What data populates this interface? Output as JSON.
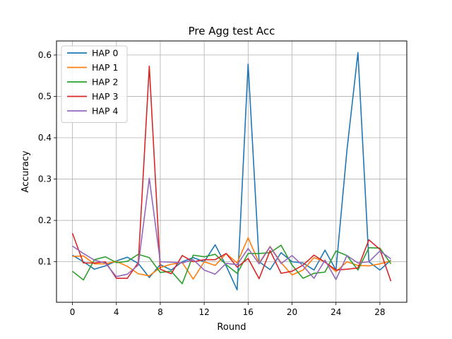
{
  "chart_data": {
    "type": "line",
    "title": "Pre Agg test Acc",
    "xlabel": "Round",
    "ylabel": "Accuracy",
    "xlim": [
      -1.45,
      30.45
    ],
    "ylim": [
      0.002,
      0.634
    ],
    "xticks": [
      0,
      4,
      8,
      12,
      16,
      20,
      24,
      28
    ],
    "yticks": [
      0.1,
      0.2,
      0.3,
      0.4,
      0.5,
      0.6
    ],
    "ytick_labels": [
      "0.1",
      "0.2",
      "0.3",
      "0.4",
      "0.5",
      "0.6"
    ],
    "grid": true,
    "legend_position": "upper-left",
    "x": [
      0,
      1,
      2,
      3,
      4,
      5,
      6,
      7,
      8,
      9,
      10,
      11,
      12,
      13,
      14,
      15,
      16,
      17,
      18,
      19,
      20,
      21,
      22,
      23,
      24,
      25,
      26,
      27,
      28,
      29
    ],
    "series": [
      {
        "name": "HAP 0",
        "color": "#1f77b4",
        "values": [
          0.116,
          0.1,
          0.082,
          0.09,
          0.102,
          0.111,
          0.096,
          0.062,
          0.093,
          0.08,
          0.1,
          0.11,
          0.1,
          0.141,
          0.09,
          0.032,
          0.578,
          0.1,
          0.081,
          0.122,
          0.1,
          0.097,
          0.08,
          0.128,
          0.08,
          0.37,
          0.606,
          0.1,
          0.08,
          0.104
        ]
      },
      {
        "name": "HAP 1",
        "color": "#ff7f0e",
        "values": [
          0.113,
          0.114,
          0.095,
          0.095,
          0.101,
          0.089,
          0.071,
          0.066,
          0.086,
          0.094,
          0.098,
          0.058,
          0.1,
          0.091,
          0.12,
          0.097,
          0.158,
          0.097,
          0.137,
          0.098,
          0.068,
          0.08,
          0.11,
          0.1,
          0.076,
          0.1,
          0.091,
          0.09,
          0.095,
          0.102
        ]
      },
      {
        "name": "HAP 2",
        "color": "#2ca02c",
        "values": [
          0.077,
          0.056,
          0.105,
          0.112,
          0.098,
          0.101,
          0.118,
          0.11,
          0.074,
          0.077,
          0.047,
          0.116,
          0.112,
          0.118,
          0.093,
          0.072,
          0.12,
          0.12,
          0.122,
          0.14,
          0.092,
          0.06,
          0.072,
          0.075,
          0.126,
          0.115,
          0.08,
          0.134,
          0.133,
          0.095
        ]
      },
      {
        "name": "HAP 3",
        "color": "#d62728",
        "values": [
          0.169,
          0.097,
          0.097,
          0.1,
          0.06,
          0.06,
          0.098,
          0.573,
          0.082,
          0.071,
          0.115,
          0.1,
          0.105,
          0.105,
          0.12,
          0.087,
          0.108,
          0.059,
          0.127,
          0.072,
          0.077,
          0.092,
          0.116,
          0.099,
          0.08,
          0.082,
          0.085,
          0.153,
          0.13,
          0.053
        ]
      },
      {
        "name": "HAP 4",
        "color": "#9467bd",
        "values": [
          0.138,
          0.12,
          0.104,
          0.097,
          0.064,
          0.07,
          0.092,
          0.302,
          0.1,
          0.099,
          0.097,
          0.105,
          0.08,
          0.07,
          0.096,
          0.093,
          0.132,
          0.095,
          0.136,
          0.096,
          0.115,
          0.09,
          0.06,
          0.104,
          0.057,
          0.115,
          0.097,
          0.1,
          0.126,
          0.107
        ]
      }
    ]
  }
}
